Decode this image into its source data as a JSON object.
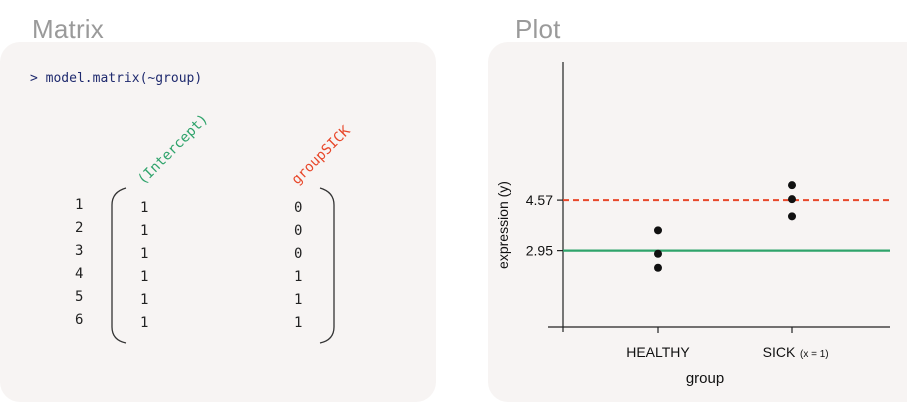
{
  "titles": {
    "matrix": "Matrix",
    "plot": "Plot"
  },
  "matrix": {
    "command": "> model.matrix(~group)",
    "columns": [
      "(Intercept)",
      "groupSICK"
    ],
    "row_labels": [
      "1",
      "2",
      "3",
      "4",
      "5",
      "6"
    ],
    "rows": [
      [
        "1",
        "0"
      ],
      [
        "1",
        "0"
      ],
      [
        "1",
        "0"
      ],
      [
        "1",
        "1"
      ],
      [
        "1",
        "1"
      ],
      [
        "1",
        "1"
      ]
    ],
    "colors": {
      "intercept": "#2fa36b",
      "group": "#e8472a",
      "command": "#1f2a6e"
    }
  },
  "chart_data": {
    "type": "scatter",
    "xlabel": "group",
    "ylabel": "expression (y)",
    "categories": [
      "HEALTHY",
      "SICK"
    ],
    "category_note": "(x = 1)",
    "ylim": [
      0.5,
      9.0
    ],
    "yticks": [
      2.95,
      4.57
    ],
    "points": [
      {
        "category": "HEALTHY",
        "y": 3.6
      },
      {
        "category": "HEALTHY",
        "y": 2.85
      },
      {
        "category": "HEALTHY",
        "y": 2.4
      },
      {
        "category": "SICK",
        "y": 5.05
      },
      {
        "category": "SICK",
        "y": 4.6
      },
      {
        "category": "SICK",
        "y": 4.05
      }
    ],
    "hlines": [
      {
        "y": 2.95,
        "style": "solid",
        "color": "#2fa36b"
      },
      {
        "y": 4.57,
        "style": "dashed",
        "color": "#e8472a"
      }
    ]
  }
}
